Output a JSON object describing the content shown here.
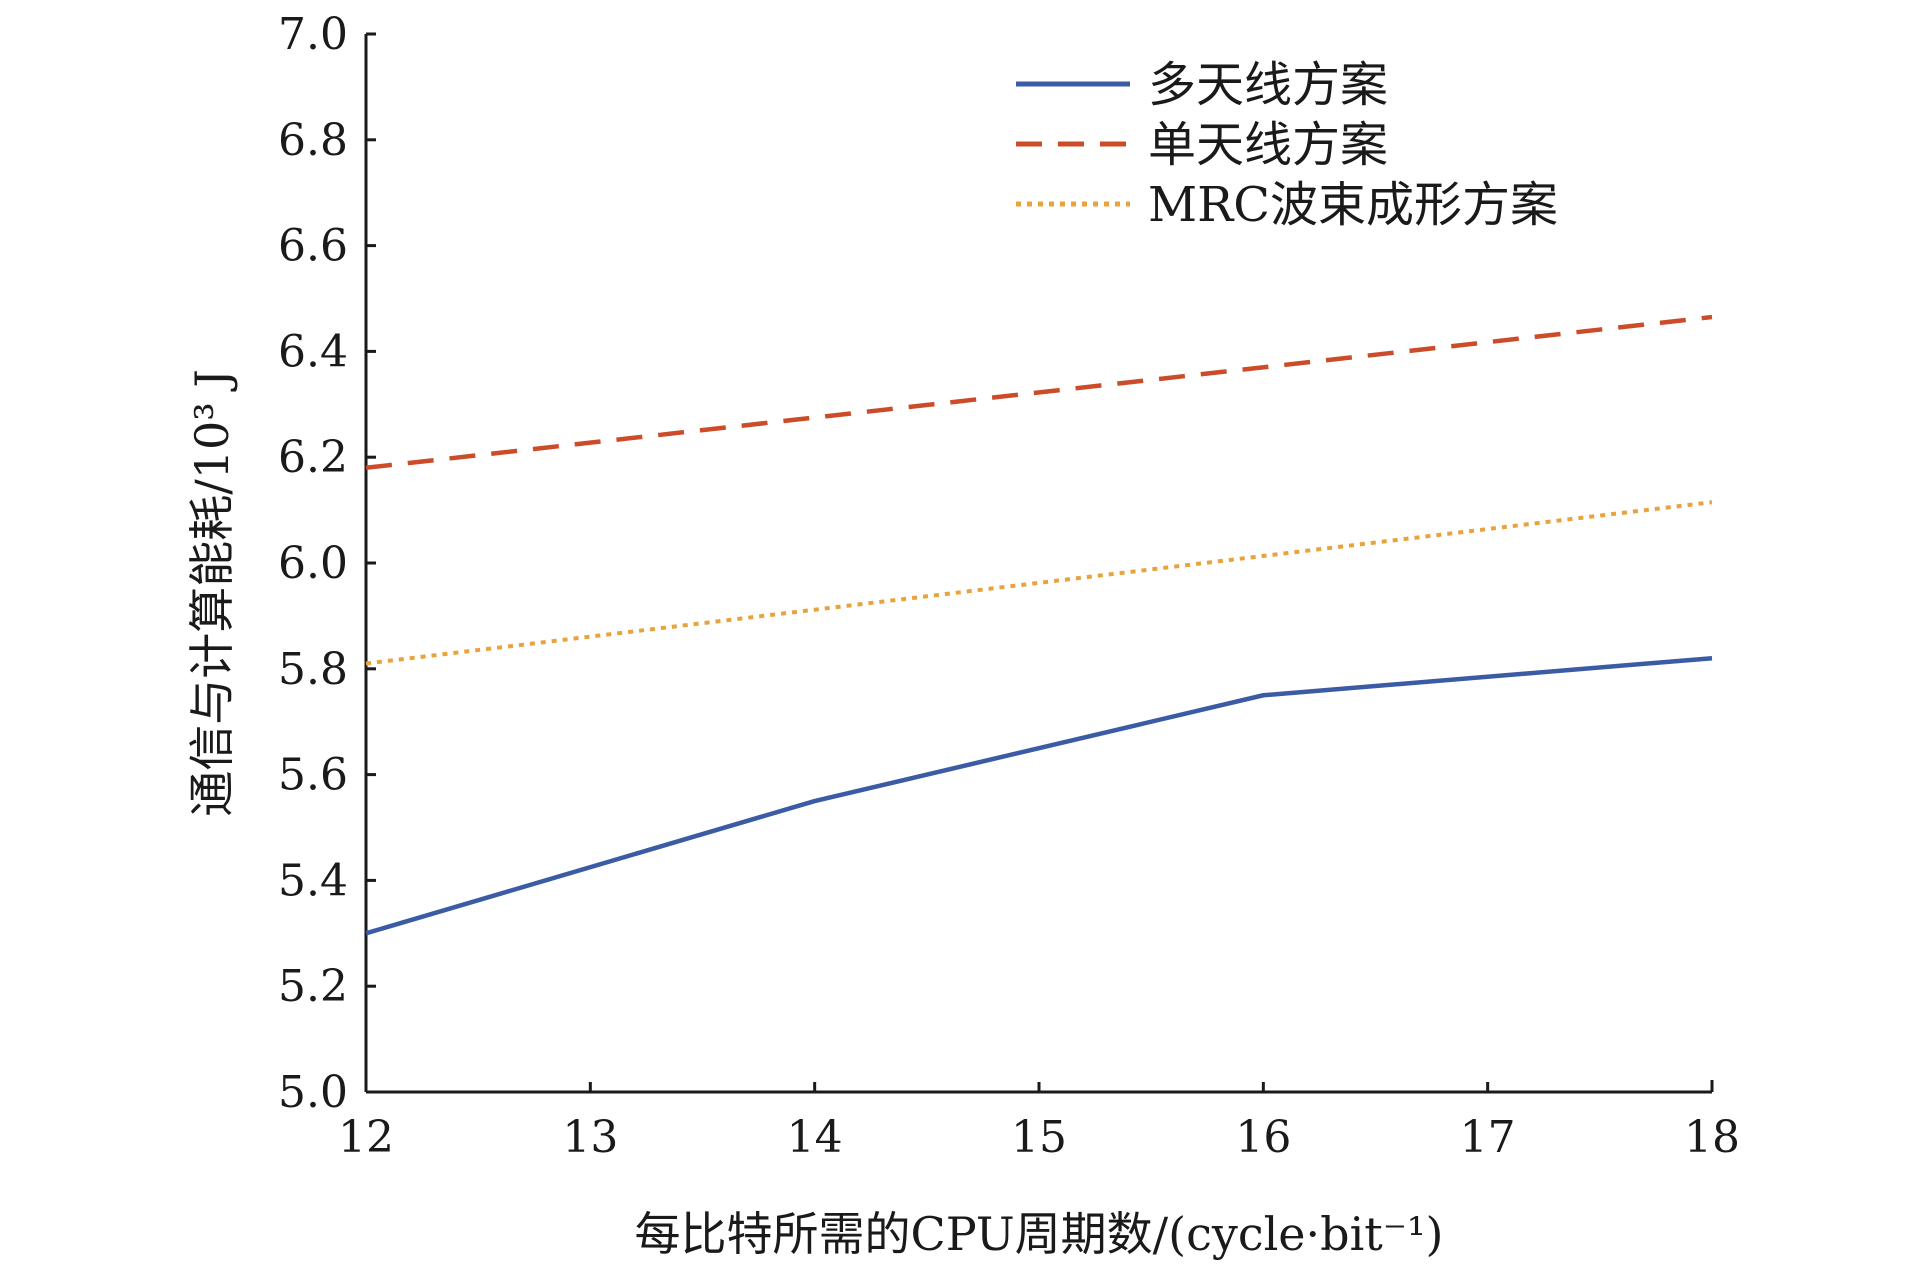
{
  "chart_data": {
    "type": "line",
    "title": "",
    "xlabel": "每比特所需的CPU周期数/(cycle·bit⁻¹)",
    "ylabel": "通信与计算能耗/10³ J",
    "xlim": [
      12,
      18
    ],
    "ylim": [
      5.0,
      7.0
    ],
    "x_ticks": [
      "12",
      "13",
      "14",
      "15",
      "16",
      "17",
      "18"
    ],
    "y_ticks": [
      "5.0",
      "5.2",
      "5.4",
      "5.6",
      "5.8",
      "6.0",
      "6.2",
      "6.4",
      "6.6",
      "6.8",
      "7.0"
    ],
    "grid": false,
    "legend_position": "top-right",
    "series": [
      {
        "name": "多天线方案",
        "color": "#3b5ba5",
        "style": "solid",
        "x": [
          12,
          14,
          16,
          18
        ],
        "y": [
          5.3,
          5.55,
          5.75,
          5.82
        ]
      },
      {
        "name": "单天线方案",
        "color": "#cc4c2a",
        "style": "dashed",
        "x": [
          12,
          18
        ],
        "y": [
          6.18,
          6.465
        ]
      },
      {
        "name": "MRC波束成形方案",
        "color": "#e8a33c",
        "style": "dotted",
        "x": [
          12,
          18
        ],
        "y": [
          5.81,
          6.115
        ]
      }
    ]
  }
}
